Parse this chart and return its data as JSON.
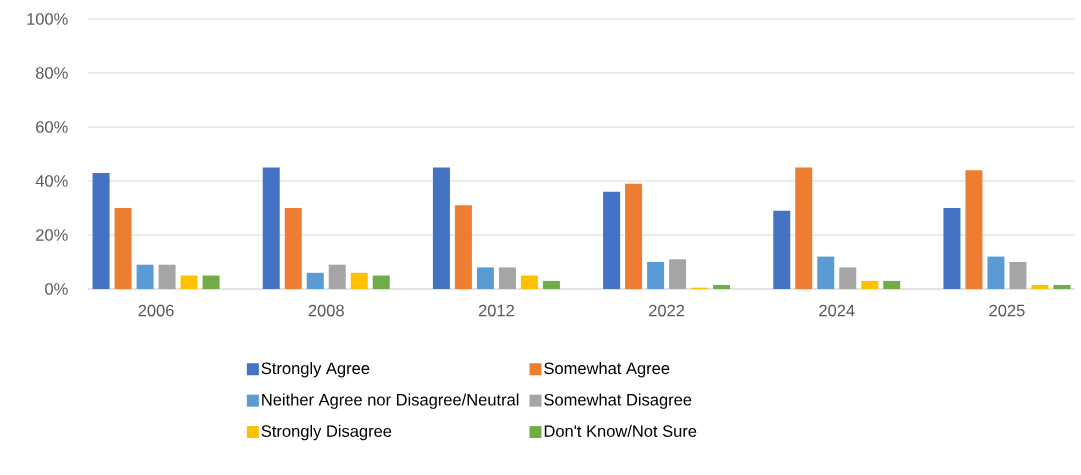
{
  "chart_data": {
    "type": "bar",
    "categories": [
      "2006",
      "2008",
      "2012",
      "2022",
      "2024",
      "2025"
    ],
    "series": [
      {
        "name": "Strongly Agree",
        "color": "#4472c4",
        "values": [
          43,
          45,
          45,
          36,
          29,
          30
        ]
      },
      {
        "name": "Somewhat Agree",
        "color": "#ed7d31",
        "values": [
          30,
          30,
          31,
          39,
          45,
          44
        ]
      },
      {
        "name": "Neither Agree nor Disagree/Neutral",
        "color": "#5b9bd5",
        "values": [
          9,
          6,
          8,
          10,
          12,
          12
        ]
      },
      {
        "name": "Somewhat Disagree",
        "color": "#a5a5a5",
        "values": [
          9,
          9,
          8,
          11,
          8,
          10
        ]
      },
      {
        "name": "Strongly Disagree",
        "color": "#ffc000",
        "values": [
          5,
          6,
          5,
          0.5,
          3,
          1.5
        ]
      },
      {
        "name": "Don't Know/Not Sure",
        "color": "#70ad47",
        "values": [
          5,
          5,
          3,
          1.5,
          3,
          1.5
        ]
      }
    ],
    "ylim": [
      0,
      100
    ],
    "yticks": [
      {
        "value": 0,
        "label": "0%"
      },
      {
        "value": 20,
        "label": "20%"
      },
      {
        "value": 40,
        "label": "40%"
      },
      {
        "value": 60,
        "label": "60%"
      },
      {
        "value": 80,
        "label": "80%"
      },
      {
        "value": 100,
        "label": "100%"
      }
    ],
    "grid": "y",
    "legend": "bottom"
  }
}
